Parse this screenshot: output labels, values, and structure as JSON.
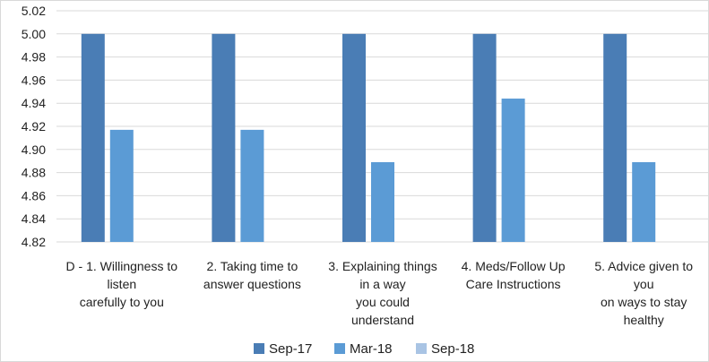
{
  "chart_data": {
    "type": "bar",
    "categories": [
      [
        "D - 1. Willingness to",
        "listen",
        "carefully to you"
      ],
      [
        "2. Taking time to",
        "answer questions"
      ],
      [
        "3. Explaining things",
        "in a way",
        "you could",
        "understand"
      ],
      [
        "4. Meds/Follow Up",
        "Care Instructions"
      ],
      [
        "5. Advice given to",
        "you",
        "on ways to stay",
        "healthy"
      ]
    ],
    "series": [
      {
        "name": "Sep-17",
        "color": "#4a7db5",
        "values": [
          5.0,
          5.0,
          5.0,
          5.0,
          5.0
        ]
      },
      {
        "name": "Mar-18",
        "color": "#5b9bd5",
        "values": [
          4.917,
          4.917,
          4.889,
          4.944,
          4.889
        ]
      },
      {
        "name": "Sep-18",
        "color": "#a9c4e4",
        "values": [
          null,
          null,
          null,
          null,
          null
        ]
      }
    ],
    "ylim": [
      4.82,
      5.02
    ],
    "yticks": [
      "4.82",
      "4.84",
      "4.86",
      "4.88",
      "4.90",
      "4.92",
      "4.94",
      "4.96",
      "4.98",
      "5.00",
      "5.02"
    ],
    "grid": true,
    "legend": "bottom"
  }
}
